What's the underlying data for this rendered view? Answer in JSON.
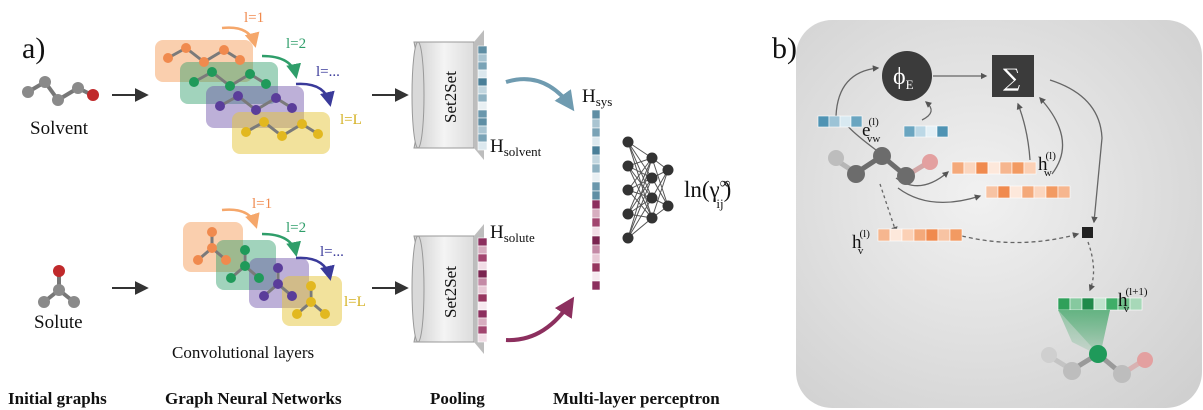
{
  "panel_a": {
    "label": "a)",
    "solvent_label": "Solvent",
    "solute_label": "Solute",
    "layers": {
      "l1": "l=1",
      "l2": "l=2",
      "ldots": "l=...",
      "lL": "l=L"
    },
    "conv_layers_label": "Convolutional layers",
    "pooling_box_label": "Set2Set",
    "h_solvent": {
      "base": "H",
      "sub": "solvent"
    },
    "h_solute": {
      "base": "H",
      "sub": "solute"
    },
    "h_sys": {
      "base": "H",
      "sub": "sys"
    },
    "output": {
      "prefix": "ln(γ",
      "sup": "∞",
      "sub": "ij",
      "suffix": ")"
    },
    "captions": [
      "Initial graphs",
      "Graph Neural Networks",
      "Pooling",
      "Multi-layer perceptron"
    ]
  },
  "panel_b": {
    "label": "b)",
    "phi": {
      "base": "ϕ",
      "sub": "E"
    },
    "sum_symbol": "∑",
    "e_vw": {
      "base": "e",
      "sup": "(l)",
      "sub": "vw"
    },
    "h_w": {
      "base": "h",
      "sup": "(l)",
      "sub": "w"
    },
    "h_v": {
      "base": "h",
      "sup": "(l)",
      "sub": "v"
    },
    "h_v_next": {
      "base": "h",
      "sup": "(l+1)",
      "sub": "v"
    }
  },
  "colors": {
    "layer1": "#f5a76b",
    "layer2": "#2f9e6a",
    "layer3": "#6c4fa8",
    "layerL": "#e6c53a",
    "solvent_vec": "#6f9bb0",
    "solute_vec": "#8c2f5e",
    "node": "#8a8a8a",
    "atom_red": "#c0292b",
    "edge_vec": "#4f93b3",
    "hidden_vec": "#f08a4e",
    "next_vec": "#2fa05a"
  }
}
